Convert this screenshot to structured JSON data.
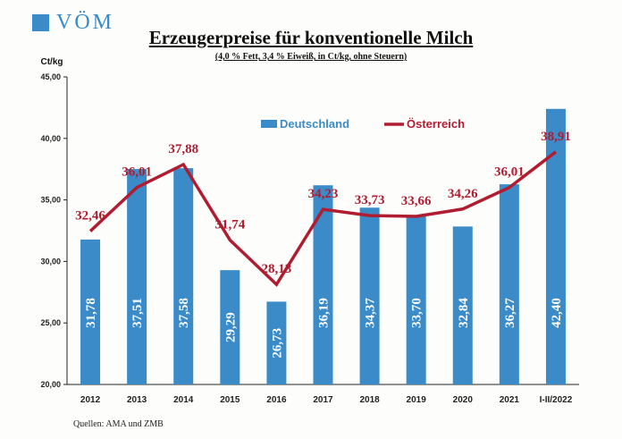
{
  "logo": {
    "text": "VÖM"
  },
  "header": {
    "title": "Erzeugerpreise für konventionelle Milch",
    "subtitle": "(4,0 % Fett, 3,4 % Eiweiß, in Ct/kg, ohne Steuern)"
  },
  "footer": {
    "source": "Quellen: AMA und ZMB"
  },
  "colors": {
    "bar": "#3a8bc8",
    "line": "#b01c30",
    "bar_label": "#ffffff",
    "line_label": "#b01c30"
  },
  "chart_data": {
    "type": "bar",
    "ylabel": "Ct/kg",
    "ylim": [
      20,
      45
    ],
    "yticks": [
      "20,00",
      "25,00",
      "30,00",
      "35,00",
      "40,00",
      "45,00"
    ],
    "grid": false,
    "legend_position": "top-center",
    "categories": [
      "2012",
      "2013",
      "2014",
      "2015",
      "2016",
      "2017",
      "2018",
      "2019",
      "2020",
      "2021",
      "I-II/2022"
    ],
    "series": [
      {
        "name": "Deutschland",
        "type": "bar",
        "values": [
          31.78,
          37.51,
          37.58,
          29.29,
          26.73,
          36.19,
          34.37,
          33.7,
          32.84,
          36.27,
          42.4
        ],
        "labels": [
          "31,78",
          "37,51",
          "37,58",
          "29,29",
          "26,73",
          "36,19",
          "34,37",
          "33,70",
          "32,84",
          "36,27",
          "42,40"
        ]
      },
      {
        "name": "Österreich",
        "type": "line",
        "values": [
          32.46,
          36.01,
          37.88,
          31.74,
          28.13,
          34.23,
          33.73,
          33.66,
          34.26,
          36.01,
          38.91
        ],
        "labels": [
          "32,46",
          "36,01",
          "37,88",
          "31,74",
          "28,13",
          "34,23",
          "33,73",
          "33,66",
          "34,26",
          "36,01",
          "38,91"
        ]
      }
    ]
  }
}
